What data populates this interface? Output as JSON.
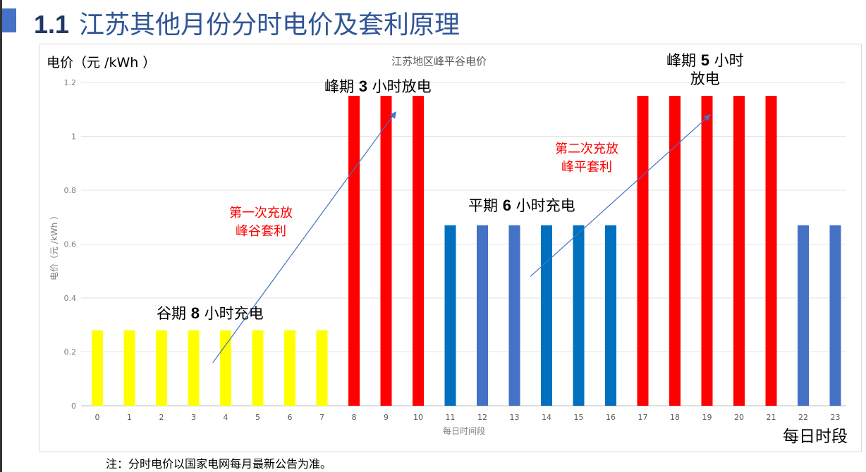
{
  "header": {
    "number": "1.1",
    "title": "江苏其他月份分时电价及套利原理"
  },
  "chart_data": {
    "type": "bar",
    "title": "江苏地区峰平谷电价",
    "unit_label": "电价（元 /kWh ）",
    "ylabel": "电价（元 /kWh ）",
    "xlabel": "每日时间段",
    "xlabel_big": "每日时段",
    "ylim": [
      0,
      1.2
    ],
    "yticks": [
      "0",
      "0.2",
      "0.4",
      "0.6",
      "0.8",
      "1",
      "1.2"
    ],
    "grid": true,
    "categories": [
      "0",
      "1",
      "2",
      "3",
      "4",
      "5",
      "6",
      "7",
      "8",
      "9",
      "10",
      "11",
      "12",
      "13",
      "14",
      "15",
      "16",
      "17",
      "18",
      "19",
      "20",
      "21",
      "22",
      "23"
    ],
    "values": [
      0.28,
      0.28,
      0.28,
      0.28,
      0.28,
      0.28,
      0.28,
      0.28,
      1.15,
      1.15,
      1.15,
      0.67,
      0.67,
      0.67,
      0.67,
      0.67,
      0.67,
      1.15,
      1.15,
      1.15,
      1.15,
      1.15,
      0.67,
      0.67
    ],
    "bar_colors": [
      "#FFFF00",
      "#FFFF00",
      "#FFFF00",
      "#FFFF00",
      "#FFFF00",
      "#FFFF00",
      "#FFFF00",
      "#FFFF00",
      "#FF0000",
      "#FF0000",
      "#FF0000",
      "#0070C0",
      "#4472C4",
      "#4472C4",
      "#0070C0",
      "#0070C0",
      "#0070C0",
      "#FF0000",
      "#FF0000",
      "#FF0000",
      "#FF0000",
      "#FF0000",
      "#4472C4",
      "#4472C4"
    ],
    "annotations": {
      "valley": {
        "pre": "谷期 ",
        "num": "8",
        "post": " 小时充电"
      },
      "peak1": {
        "pre": "峰期 ",
        "num": "3",
        "post": " 小时放电"
      },
      "flat": {
        "pre": "平期 ",
        "num": "6",
        "post": " 小时充电"
      },
      "peak2": {
        "pre": "峰期 ",
        "num": "5",
        "post": " 小时",
        "line2": "放电"
      },
      "arb1": {
        "line1": "第一次充放",
        "line2": "峰谷套利"
      },
      "arb2": {
        "line1": "第二次充放",
        "line2": "峰平套利"
      }
    },
    "arrows": [
      {
        "from_hour": 3.6,
        "from_value": 0.16,
        "to_hour": 9.3,
        "to_value": 1.09
      },
      {
        "from_hour": 13.5,
        "from_value": 0.48,
        "to_hour": 19.1,
        "to_value": 1.08
      }
    ]
  },
  "footer": {
    "note": "注：分时电价以国家电网每月最新公告为准。"
  }
}
